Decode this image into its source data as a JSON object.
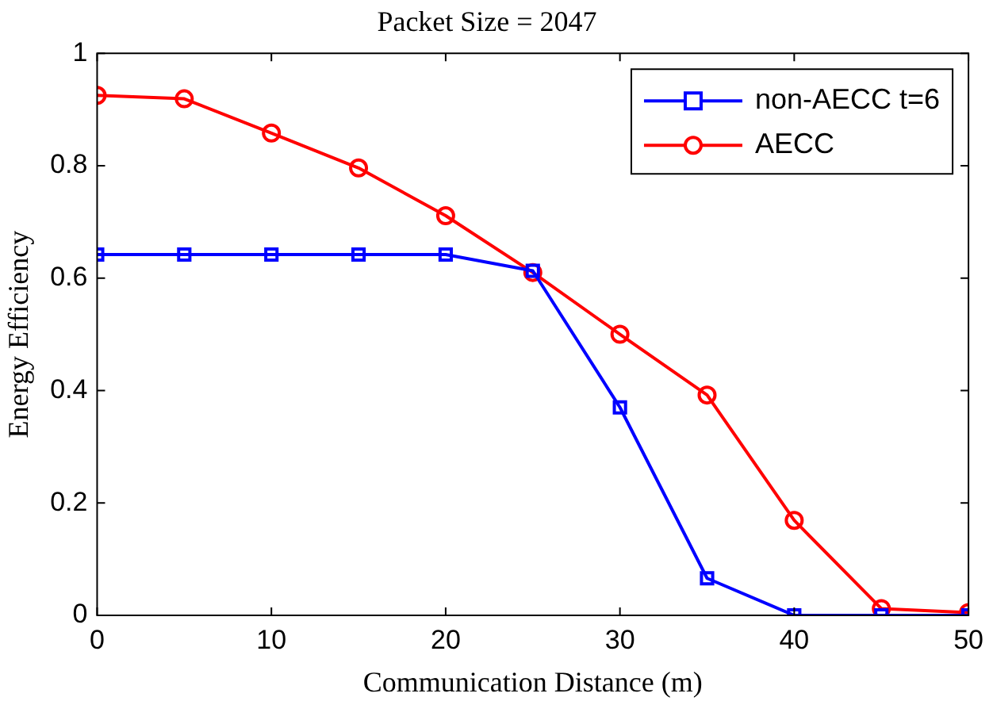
{
  "chart_data": {
    "type": "line",
    "title": "Packet Size = 2047",
    "xlabel": "Communication Distance (m)",
    "ylabel": "Energy Efficiency",
    "x": [
      0,
      5,
      10,
      15,
      20,
      25,
      30,
      35,
      40,
      45,
      50
    ],
    "series": [
      {
        "name": "non-AECC t=6",
        "color": "#0000ff",
        "marker": "square",
        "values": [
          0.642,
          0.642,
          0.642,
          0.642,
          0.642,
          0.613,
          0.37,
          0.066,
          0,
          0,
          0
        ]
      },
      {
        "name": "AECC",
        "color": "#ff0000",
        "marker": "circle",
        "values": [
          0.925,
          0.919,
          0.858,
          0.796,
          0.711,
          0.61,
          0.5,
          0.392,
          0.169,
          0.012,
          0.005
        ]
      }
    ],
    "xlim": [
      0,
      50
    ],
    "xticks": [
      0,
      10,
      20,
      30,
      40,
      50
    ],
    "ylim": [
      0,
      1
    ],
    "yticks": [
      0,
      0.2,
      0.4,
      0.6,
      0.8,
      1
    ],
    "grid": false,
    "legend": "top right",
    "line_style": "solid"
  }
}
